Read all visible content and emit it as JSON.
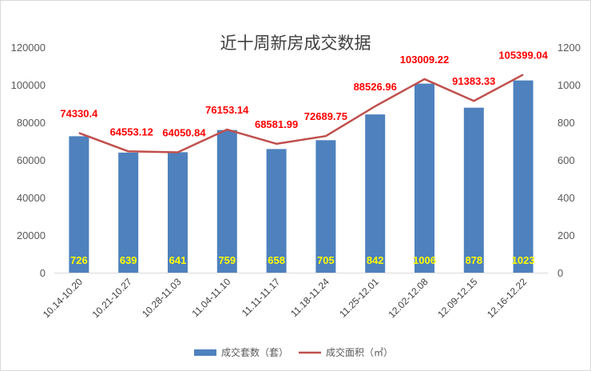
{
  "chart_data": {
    "type": "bar",
    "title": "近十周新房成交数据",
    "categories": [
      "10.14-10.20",
      "10.21-10.27",
      "10.28-11.03",
      "11.04-11.10",
      "11.11-11.17",
      "11.18-11.24",
      "11.25-12.01",
      "12.02-12.08",
      "12.09-12.15",
      "12.16-12.22"
    ],
    "series": [
      {
        "name": "成交套数（套）",
        "chart": "bar",
        "axis": "left",
        "color": "#4e81bd",
        "values": [
          726,
          639,
          641,
          759,
          658,
          705,
          842,
          1006,
          878,
          1023
        ],
        "labels": [
          "726",
          "639",
          "641",
          "759",
          "658",
          "705",
          "842",
          "1006",
          "878",
          "1023"
        ]
      },
      {
        "name": "成交面积（㎡）",
        "chart": "line",
        "axis": "right",
        "color": "#c0504d",
        "values": [
          74330.4,
          64553.12,
          64050.84,
          76153.14,
          68581.99,
          72689.75,
          88526.96,
          103009.22,
          91383.33,
          105399.04
        ],
        "labels": [
          "74330.4",
          "64553.12",
          "64050.84",
          "76153.14",
          "68581.99",
          "72689.75",
          "88526.96",
          "103009.22",
          "91383.33",
          "105399.04"
        ]
      }
    ],
    "left_axis": {
      "range": [
        0,
        120000
      ],
      "ticks": [
        "0",
        "20000",
        "40000",
        "60000",
        "80000",
        "100000",
        "120000"
      ]
    },
    "right_axis": {
      "range": [
        0,
        1200
      ],
      "ticks": [
        "0",
        "200",
        "400",
        "600",
        "800",
        "1000",
        "1200"
      ]
    },
    "legend_position": "bottom",
    "grid": false
  }
}
